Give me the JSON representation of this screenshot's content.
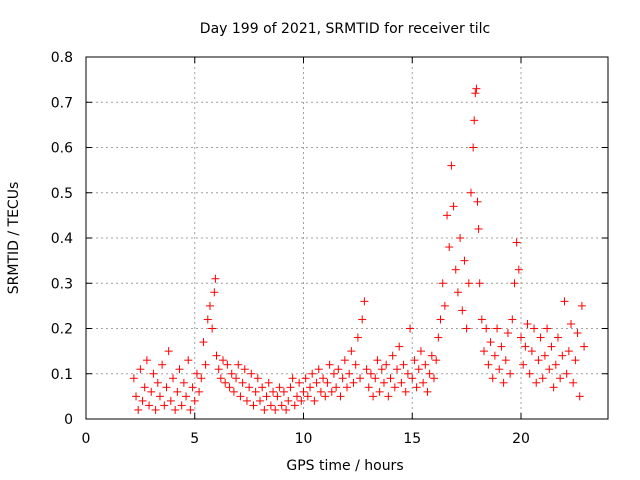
{
  "chart_data": {
    "type": "scatter",
    "title": "Day 199 of 2021, SRMTID for receiver tilc",
    "xlabel": "GPS time / hours",
    "ylabel": "SRMTID / TECUs",
    "xlim": [
      0,
      24
    ],
    "ylim": [
      0,
      0.8
    ],
    "x_ticks": [
      0,
      5,
      10,
      15,
      20
    ],
    "x_tick_labels": [
      "0",
      "5",
      "10",
      "15",
      "20"
    ],
    "y_ticks": [
      0,
      0.1,
      0.2,
      0.3,
      0.4,
      0.5,
      0.6,
      0.7,
      0.8
    ],
    "y_tick_labels": [
      "0",
      "0.1",
      "0.2",
      "0.3",
      "0.4",
      "0.5",
      "0.6",
      "0.7",
      "0.8"
    ],
    "grid": true,
    "marker": "plus",
    "color": "#ff0000",
    "series": [
      {
        "name": "SRMTID",
        "points": [
          [
            2.2,
            0.09
          ],
          [
            2.3,
            0.05
          ],
          [
            2.4,
            0.02
          ],
          [
            2.5,
            0.11
          ],
          [
            2.6,
            0.04
          ],
          [
            2.7,
            0.07
          ],
          [
            2.8,
            0.13
          ],
          [
            2.9,
            0.03
          ],
          [
            3.0,
            0.06
          ],
          [
            3.1,
            0.1
          ],
          [
            3.2,
            0.02
          ],
          [
            3.3,
            0.08
          ],
          [
            3.4,
            0.05
          ],
          [
            3.5,
            0.12
          ],
          [
            3.6,
            0.03
          ],
          [
            3.7,
            0.07
          ],
          [
            3.8,
            0.15
          ],
          [
            3.9,
            0.04
          ],
          [
            4.0,
            0.09
          ],
          [
            4.1,
            0.02
          ],
          [
            4.2,
            0.06
          ],
          [
            4.3,
            0.11
          ],
          [
            4.4,
            0.03
          ],
          [
            4.5,
            0.08
          ],
          [
            4.6,
            0.05
          ],
          [
            4.7,
            0.13
          ],
          [
            4.8,
            0.02
          ],
          [
            4.9,
            0.07
          ],
          [
            5.0,
            0.04
          ],
          [
            5.1,
            0.1
          ],
          [
            5.2,
            0.06
          ],
          [
            5.3,
            0.09
          ],
          [
            5.4,
            0.17
          ],
          [
            5.5,
            0.12
          ],
          [
            5.6,
            0.22
          ],
          [
            5.7,
            0.25
          ],
          [
            5.8,
            0.2
          ],
          [
            5.9,
            0.28
          ],
          [
            5.95,
            0.31
          ],
          [
            6.0,
            0.14
          ],
          [
            6.1,
            0.11
          ],
          [
            6.2,
            0.09
          ],
          [
            6.3,
            0.13
          ],
          [
            6.4,
            0.08
          ],
          [
            6.5,
            0.12
          ],
          [
            6.6,
            0.07
          ],
          [
            6.7,
            0.1
          ],
          [
            6.8,
            0.06
          ],
          [
            6.9,
            0.09
          ],
          [
            7.0,
            0.12
          ],
          [
            7.1,
            0.05
          ],
          [
            7.2,
            0.08
          ],
          [
            7.3,
            0.11
          ],
          [
            7.4,
            0.04
          ],
          [
            7.5,
            0.07
          ],
          [
            7.6,
            0.1
          ],
          [
            7.7,
            0.03
          ],
          [
            7.8,
            0.06
          ],
          [
            7.9,
            0.09
          ],
          [
            8.0,
            0.04
          ],
          [
            8.1,
            0.07
          ],
          [
            8.2,
            0.02
          ],
          [
            8.3,
            0.05
          ],
          [
            8.4,
            0.08
          ],
          [
            8.5,
            0.03
          ],
          [
            8.6,
            0.06
          ],
          [
            8.7,
            0.02
          ],
          [
            8.8,
            0.05
          ],
          [
            8.9,
            0.07
          ],
          [
            9.0,
            0.03
          ],
          [
            9.1,
            0.06
          ],
          [
            9.2,
            0.02
          ],
          [
            9.3,
            0.04
          ],
          [
            9.4,
            0.07
          ],
          [
            9.5,
            0.09
          ],
          [
            9.6,
            0.03
          ],
          [
            9.7,
            0.05
          ],
          [
            9.8,
            0.08
          ],
          [
            9.9,
            0.04
          ],
          [
            10.0,
            0.06
          ],
          [
            10.1,
            0.09
          ],
          [
            10.2,
            0.05
          ],
          [
            10.3,
            0.07
          ],
          [
            10.4,
            0.1
          ],
          [
            10.5,
            0.04
          ],
          [
            10.6,
            0.08
          ],
          [
            10.7,
            0.11
          ],
          [
            10.8,
            0.06
          ],
          [
            10.9,
            0.09
          ],
          [
            11.0,
            0.05
          ],
          [
            11.1,
            0.08
          ],
          [
            11.2,
            0.12
          ],
          [
            11.3,
            0.06
          ],
          [
            11.4,
            0.1
          ],
          [
            11.5,
            0.07
          ],
          [
            11.6,
            0.11
          ],
          [
            11.7,
            0.05
          ],
          [
            11.8,
            0.09
          ],
          [
            11.9,
            0.13
          ],
          [
            12.0,
            0.07
          ],
          [
            12.1,
            0.1
          ],
          [
            12.2,
            0.15
          ],
          [
            12.3,
            0.08
          ],
          [
            12.4,
            0.12
          ],
          [
            12.5,
            0.18
          ],
          [
            12.6,
            0.09
          ],
          [
            12.7,
            0.22
          ],
          [
            12.8,
            0.26
          ],
          [
            12.9,
            0.11
          ],
          [
            13.0,
            0.07
          ],
          [
            13.1,
            0.1
          ],
          [
            13.2,
            0.05
          ],
          [
            13.3,
            0.09
          ],
          [
            13.4,
            0.13
          ],
          [
            13.5,
            0.06
          ],
          [
            13.6,
            0.11
          ],
          [
            13.7,
            0.08
          ],
          [
            13.8,
            0.12
          ],
          [
            13.9,
            0.05
          ],
          [
            14.0,
            0.09
          ],
          [
            14.1,
            0.14
          ],
          [
            14.2,
            0.07
          ],
          [
            14.3,
            0.11
          ],
          [
            14.4,
            0.16
          ],
          [
            14.5,
            0.08
          ],
          [
            14.6,
            0.12
          ],
          [
            14.7,
            0.06
          ],
          [
            14.8,
            0.1
          ],
          [
            14.9,
            0.2
          ],
          [
            15.0,
            0.09
          ],
          [
            15.1,
            0.13
          ],
          [
            15.2,
            0.07
          ],
          [
            15.3,
            0.11
          ],
          [
            15.4,
            0.15
          ],
          [
            15.5,
            0.08
          ],
          [
            15.6,
            0.12
          ],
          [
            15.7,
            0.06
          ],
          [
            15.8,
            0.1
          ],
          [
            15.9,
            0.14
          ],
          [
            16.0,
            0.09
          ],
          [
            16.1,
            0.13
          ],
          [
            16.2,
            0.18
          ],
          [
            16.3,
            0.22
          ],
          [
            16.4,
            0.3
          ],
          [
            16.5,
            0.25
          ],
          [
            16.6,
            0.45
          ],
          [
            16.7,
            0.38
          ],
          [
            16.8,
            0.56
          ],
          [
            16.9,
            0.47
          ],
          [
            17.0,
            0.33
          ],
          [
            17.1,
            0.28
          ],
          [
            17.2,
            0.4
          ],
          [
            17.3,
            0.24
          ],
          [
            17.4,
            0.35
          ],
          [
            17.5,
            0.2
          ],
          [
            17.6,
            0.3
          ],
          [
            17.7,
            0.5
          ],
          [
            17.8,
            0.6
          ],
          [
            17.85,
            0.66
          ],
          [
            17.9,
            0.72
          ],
          [
            17.95,
            0.73
          ],
          [
            18.0,
            0.48
          ],
          [
            18.05,
            0.42
          ],
          [
            18.1,
            0.3
          ],
          [
            18.2,
            0.22
          ],
          [
            18.3,
            0.15
          ],
          [
            18.4,
            0.2
          ],
          [
            18.5,
            0.12
          ],
          [
            18.6,
            0.17
          ],
          [
            18.7,
            0.09
          ],
          [
            18.8,
            0.14
          ],
          [
            18.9,
            0.2
          ],
          [
            19.0,
            0.11
          ],
          [
            19.1,
            0.16
          ],
          [
            19.2,
            0.08
          ],
          [
            19.3,
            0.13
          ],
          [
            19.4,
            0.19
          ],
          [
            19.5,
            0.1
          ],
          [
            19.6,
            0.22
          ],
          [
            19.7,
            0.3
          ],
          [
            19.8,
            0.39
          ],
          [
            19.9,
            0.33
          ],
          [
            20.0,
            0.18
          ],
          [
            20.1,
            0.12
          ],
          [
            20.2,
            0.16
          ],
          [
            20.3,
            0.21
          ],
          [
            20.4,
            0.1
          ],
          [
            20.5,
            0.15
          ],
          [
            20.6,
            0.2
          ],
          [
            20.7,
            0.08
          ],
          [
            20.8,
            0.13
          ],
          [
            20.9,
            0.18
          ],
          [
            21.0,
            0.09
          ],
          [
            21.1,
            0.14
          ],
          [
            21.2,
            0.2
          ],
          [
            21.3,
            0.11
          ],
          [
            21.4,
            0.16
          ],
          [
            21.5,
            0.07
          ],
          [
            21.6,
            0.12
          ],
          [
            21.7,
            0.18
          ],
          [
            21.8,
            0.09
          ],
          [
            21.9,
            0.14
          ],
          [
            22.0,
            0.26
          ],
          [
            22.1,
            0.1
          ],
          [
            22.2,
            0.15
          ],
          [
            22.3,
            0.21
          ],
          [
            22.4,
            0.08
          ],
          [
            22.5,
            0.13
          ],
          [
            22.6,
            0.19
          ],
          [
            22.7,
            0.05
          ],
          [
            22.8,
            0.25
          ],
          [
            22.9,
            0.16
          ]
        ]
      }
    ]
  }
}
